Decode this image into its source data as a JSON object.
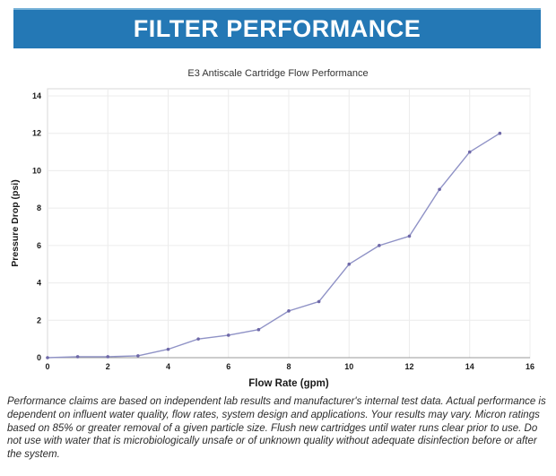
{
  "header": {
    "title": "FILTER PERFORMANCE",
    "bg_color": "#2478b5"
  },
  "chart_data": {
    "type": "line",
    "title": "E3 Antiscale Cartridge Flow Performance",
    "xlabel": "Flow Rate (gpm)",
    "ylabel": "Pressure Drop (psi)",
    "x": [
      0,
      1,
      2,
      3,
      4,
      5,
      6,
      7,
      8,
      9,
      10,
      11,
      12,
      13,
      14,
      15
    ],
    "y": [
      0,
      0.05,
      0.05,
      0.1,
      0.45,
      1.0,
      1.2,
      1.5,
      2.5,
      3.0,
      5.0,
      6.0,
      6.5,
      9.0,
      11.0,
      12.0
    ],
    "xlim": [
      0,
      16
    ],
    "ylim": [
      0,
      14
    ],
    "x_ticks": [
      0,
      2,
      4,
      6,
      8,
      10,
      12,
      14,
      16
    ],
    "y_ticks": [
      0,
      2,
      4,
      6,
      8,
      10,
      12,
      14
    ],
    "grid": true,
    "legend": "none",
    "line_color": "#8f92c6",
    "marker_color": "#6e68a8",
    "grid_color": "#ececec",
    "border_color": "#d9d9d9",
    "axis_color": "#999999",
    "tick_color": "#1a1a1a"
  },
  "footer": {
    "disclaimer": "Performance claims are based on independent lab results and manufacturer's internal test data. Actual performance is dependent on influent water quality, flow rates, system design and applications. Your results may vary. Micron ratings based on 85% or greater removal of a given particle size. Flush new cartridges until water runs clear prior to use. Do not use with water that is microbiologically unsafe or of unknown quality without adequate disinfection before or after the system."
  }
}
